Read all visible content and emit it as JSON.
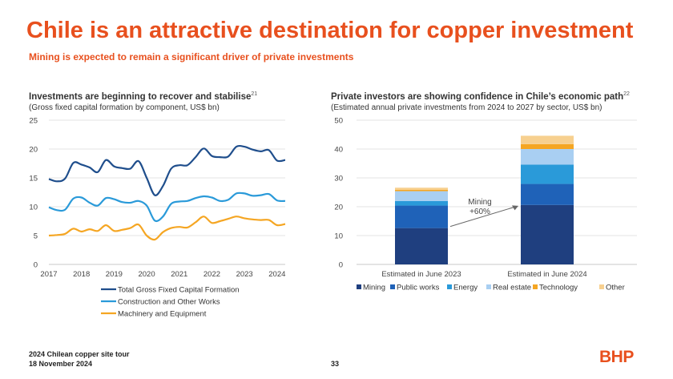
{
  "header": {
    "title": "Chile is an attractive destination for copper investment",
    "subtitle": "Mining is expected to remain a significant driver of private investments"
  },
  "left_chart": {
    "title": "Investments are beginning to recover and stabilise",
    "title_sup": "21",
    "subtitle": "(Gross fixed capital formation by component, US$ bn)"
  },
  "right_chart": {
    "title": "Private investors are showing confidence in Chile’s economic path",
    "title_sup": "22",
    "subtitle": "(Estimated annual private investments from 2024 to 2027 by sector, US$ bn)",
    "annotation_line1": "Mining",
    "annotation_line2": "+60%"
  },
  "footer": {
    "event": "2024 Chilean copper site tour",
    "date": "18 November 2024",
    "page": "33",
    "logo": "BHP"
  },
  "chart_data": [
    {
      "type": "line",
      "title": "Investments are beginning to recover and stabilise",
      "subtitle": "(Gross fixed capital formation by component, US$ bn)",
      "xlabel": "",
      "ylabel": "",
      "xlim": [
        2017,
        2024.25
      ],
      "ylim": [
        0,
        25
      ],
      "yticks": [
        0,
        5,
        10,
        15,
        20,
        25
      ],
      "xticks": [
        2017,
        2018,
        2019,
        2020,
        2021,
        2022,
        2023,
        2024
      ],
      "grid": true,
      "legend": "bottom",
      "series": [
        {
          "name": "Total Gross Fixed Capital Formation",
          "color": "#1f4e8c",
          "x": [
            2017,
            2017.25,
            2017.5,
            2017.75,
            2018,
            2018.25,
            2018.5,
            2018.75,
            2019,
            2019.25,
            2019.5,
            2019.75,
            2020,
            2020.25,
            2020.5,
            2020.75,
            2021,
            2021.25,
            2021.5,
            2021.75,
            2022,
            2022.25,
            2022.5,
            2022.75,
            2023,
            2023.25,
            2023.5,
            2023.75,
            2024,
            2024.25
          ],
          "values": [
            14.8,
            14.4,
            14.9,
            17.6,
            17.3,
            16.8,
            16.0,
            18.1,
            17.0,
            16.7,
            16.6,
            17.9,
            15.0,
            12.0,
            13.6,
            16.6,
            17.2,
            17.2,
            18.6,
            20.1,
            18.8,
            18.6,
            18.7,
            20.4,
            20.4,
            19.9,
            19.6,
            19.8,
            18.0,
            18.1
          ]
        },
        {
          "name": "Construction and Other Works",
          "color": "#2a9ad9",
          "x": [
            2017,
            2017.25,
            2017.5,
            2017.75,
            2018,
            2018.25,
            2018.5,
            2018.75,
            2019,
            2019.25,
            2019.5,
            2019.75,
            2020,
            2020.25,
            2020.5,
            2020.75,
            2021,
            2021.25,
            2021.5,
            2021.75,
            2022,
            2022.25,
            2022.5,
            2022.75,
            2023,
            2023.25,
            2023.5,
            2023.75,
            2024,
            2024.25
          ],
          "values": [
            9.9,
            9.4,
            9.5,
            11.4,
            11.6,
            10.7,
            10.2,
            11.5,
            11.3,
            10.8,
            10.7,
            11.0,
            10.2,
            7.6,
            8.3,
            10.5,
            10.9,
            11.0,
            11.5,
            11.8,
            11.6,
            11.0,
            11.2,
            12.3,
            12.3,
            11.9,
            12.0,
            12.2,
            11.1,
            11.0
          ]
        },
        {
          "name": "Machinery and Equipment",
          "color": "#f5a623",
          "x": [
            2017,
            2017.25,
            2017.5,
            2017.75,
            2018,
            2018.25,
            2018.5,
            2018.75,
            2019,
            2019.25,
            2019.5,
            2019.75,
            2020,
            2020.25,
            2020.5,
            2020.75,
            2021,
            2021.25,
            2021.5,
            2021.75,
            2022,
            2022.25,
            2022.5,
            2022.75,
            2023,
            2023.25,
            2023.5,
            2023.75,
            2024,
            2024.25
          ],
          "values": [
            5.0,
            5.1,
            5.3,
            6.2,
            5.7,
            6.1,
            5.8,
            6.8,
            5.8,
            6.0,
            6.3,
            6.9,
            5.0,
            4.3,
            5.6,
            6.3,
            6.5,
            6.4,
            7.3,
            8.3,
            7.2,
            7.5,
            7.9,
            8.3,
            8.0,
            7.8,
            7.7,
            7.7,
            6.8,
            7.0
          ]
        }
      ]
    },
    {
      "type": "bar",
      "stacked": true,
      "title": "Private investors are showing confidence in Chile’s economic path",
      "subtitle": "(Estimated annual private investments from 2024 to 2027 by sector, US$ bn)",
      "xlabel": "",
      "ylabel": "",
      "categories": [
        "Estimated in June 2023",
        "Estimated in June 2024"
      ],
      "ylim": [
        0,
        50
      ],
      "yticks": [
        0,
        10,
        20,
        30,
        40,
        50
      ],
      "grid": true,
      "legend": "bottom",
      "series": [
        {
          "name": "Mining",
          "color": "#1f3f7f",
          "values": [
            12.6,
            20.6
          ]
        },
        {
          "name": "Public works",
          "color": "#1f62b8",
          "values": [
            7.8,
            7.3
          ]
        },
        {
          "name": "Energy",
          "color": "#2a9ad9",
          "values": [
            1.6,
            6.7
          ]
        },
        {
          "name": "Real estate",
          "color": "#a9cff2",
          "values": [
            3.4,
            5.4
          ]
        },
        {
          "name": "Technology",
          "color": "#f5a623",
          "values": [
            0.5,
            1.7
          ]
        },
        {
          "name": "Other",
          "color": "#f7d08f",
          "values": [
            0.7,
            2.9
          ]
        }
      ],
      "annotations": [
        "Mining +60%"
      ]
    }
  ]
}
